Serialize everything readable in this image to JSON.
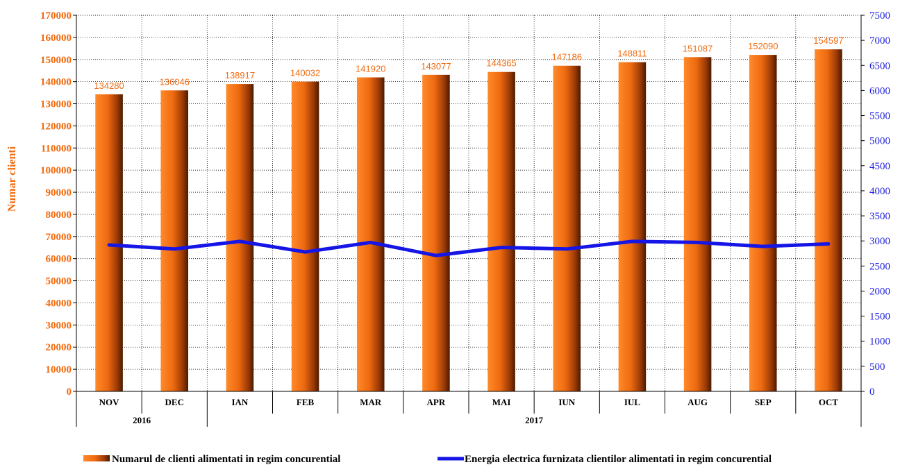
{
  "chart_data": {
    "type": "bar",
    "categories": [
      "NOV",
      "DEC",
      "IAN",
      "FEB",
      "MAR",
      "APR",
      "MAI",
      "IUN",
      "IUL",
      "AUG",
      "SEP",
      "OCT"
    ],
    "groups": [
      {
        "label": "2016",
        "span": 2
      },
      {
        "label": "2017",
        "span": 10
      }
    ],
    "series": [
      {
        "name": "Numarul de clienti alimentati in regim concurential",
        "type": "bar",
        "axis": "left",
        "color": "#f26b0f",
        "values": [
          134280,
          136046,
          138917,
          140032,
          141920,
          143077,
          144365,
          147186,
          148811,
          151087,
          152090,
          154597
        ],
        "labels": [
          "134280",
          "136046",
          "138917",
          "140032",
          "141920",
          "143077",
          "144365",
          "147186",
          "148811",
          "151087",
          "152090",
          "154597"
        ]
      },
      {
        "name": "Energia electrica furnizata clientilor alimentati in regim concurential",
        "type": "line",
        "axis": "right",
        "color": "#1515e6",
        "values": [
          2920,
          2840,
          2990,
          2780,
          2970,
          2710,
          2870,
          2840,
          2990,
          2970,
          2890,
          2940
        ]
      }
    ],
    "ylabel": "Numar clienti",
    "ylim": [
      0,
      170000
    ],
    "ytick_step": 10000,
    "yticks": [
      "0",
      "10000",
      "20000",
      "30000",
      "40000",
      "50000",
      "60000",
      "70000",
      "80000",
      "90000",
      "100000",
      "110000",
      "120000",
      "130000",
      "140000",
      "150000",
      "160000",
      "170000"
    ],
    "y2lim": [
      0,
      7500
    ],
    "y2tick_step": 500,
    "y2ticks": [
      "0",
      "500",
      "1000",
      "1500",
      "2000",
      "2500",
      "3000",
      "3500",
      "4000",
      "4500",
      "5000",
      "5500",
      "6000",
      "6500",
      "7000",
      "7500"
    ],
    "grid": true,
    "legend": "bottom"
  }
}
